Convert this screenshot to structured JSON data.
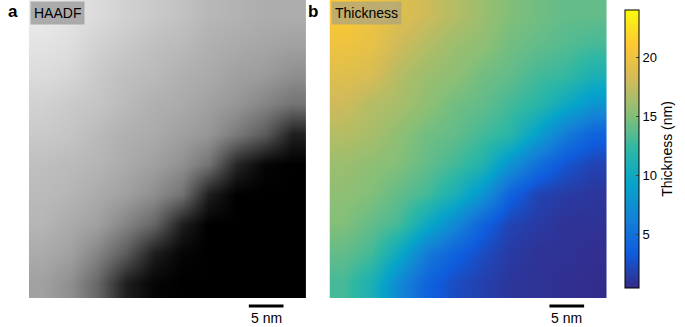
{
  "chart_data": [
    {
      "type": "heatmap",
      "panel": "a",
      "title": "HAADF",
      "xlim": [
        0,
        40
      ],
      "ylim": [
        0,
        40
      ],
      "tick_labels": false,
      "x": [
        2,
        6,
        10,
        14,
        18,
        22,
        26,
        30,
        34,
        38
      ],
      "y": [
        2,
        6,
        10,
        14,
        18,
        22,
        26,
        30,
        34,
        38
      ],
      "z": [
        [
          0.92,
          0.89,
          0.86,
          0.82,
          0.79,
          0.76,
          0.72,
          0.7,
          0.68,
          0.68
        ],
        [
          0.89,
          0.87,
          0.82,
          0.79,
          0.75,
          0.73,
          0.69,
          0.67,
          0.65,
          0.63
        ],
        [
          0.86,
          0.84,
          0.79,
          0.75,
          0.73,
          0.69,
          0.67,
          0.63,
          0.61,
          0.56
        ],
        [
          0.82,
          0.79,
          0.77,
          0.73,
          0.69,
          0.67,
          0.63,
          0.59,
          0.52,
          0.45
        ],
        [
          0.79,
          0.77,
          0.73,
          0.69,
          0.67,
          0.63,
          0.59,
          0.48,
          0.36,
          0.12
        ],
        [
          0.75,
          0.73,
          0.71,
          0.67,
          0.63,
          0.57,
          0.45,
          0.15,
          0.02,
          0
        ],
        [
          0.73,
          0.71,
          0.67,
          0.63,
          0.56,
          0.45,
          0.12,
          0,
          0,
          0
        ],
        [
          0.71,
          0.67,
          0.63,
          0.52,
          0.4,
          0.12,
          0,
          0,
          0,
          0
        ],
        [
          0.67,
          0.63,
          0.52,
          0.36,
          0.12,
          0.02,
          0,
          0,
          0,
          0
        ],
        [
          0.63,
          0.56,
          0.4,
          0.12,
          0.02,
          0,
          0,
          0,
          0,
          0
        ]
      ],
      "zlim": [
        0,
        1
      ],
      "scale_bar": {
        "length": 5,
        "label": "5 nm"
      }
    },
    {
      "type": "heatmap",
      "panel": "b",
      "title": "Thickness",
      "xlim": [
        0,
        40
      ],
      "ylim": [
        0,
        40
      ],
      "tick_labels": false,
      "x": [
        2,
        6,
        10,
        14,
        18,
        22,
        26,
        30,
        34,
        38
      ],
      "y": [
        2,
        6,
        10,
        14,
        18,
        22,
        26,
        30,
        34,
        38
      ],
      "z": [
        [
          21,
          20,
          19,
          18,
          17,
          16,
          15,
          14.5,
          14,
          14
        ],
        [
          20,
          19.5,
          18,
          17,
          16,
          15.5,
          14.5,
          14,
          13.5,
          13
        ],
        [
          19,
          18.5,
          17,
          16,
          15.5,
          14.5,
          14,
          13,
          12.5,
          11
        ],
        [
          18,
          17,
          16.5,
          15.5,
          14.5,
          14,
          13,
          12,
          10,
          8
        ],
        [
          17,
          16.5,
          15.5,
          14.5,
          14,
          13,
          12,
          9,
          6,
          4
        ],
        [
          16,
          15.5,
          15,
          14,
          13,
          11.5,
          8,
          5,
          3,
          2
        ],
        [
          15.5,
          15,
          14,
          13,
          11,
          8,
          4,
          2,
          1.5,
          1.2
        ],
        [
          15,
          14,
          13,
          10,
          7,
          4,
          2,
          1.5,
          1,
          1
        ],
        [
          14,
          13,
          10,
          6,
          4,
          2.5,
          1.5,
          1,
          1,
          0.8
        ],
        [
          13,
          11,
          7,
          4,
          2.5,
          1.8,
          1.2,
          1,
          0.8,
          0.7
        ]
      ],
      "colorbar": {
        "title": "Thickness (nm)",
        "range": [
          0.5,
          24
        ],
        "ticks": [
          5,
          10,
          15,
          20
        ]
      },
      "scale_bar": {
        "length": 5,
        "label": "5 nm"
      }
    }
  ]
}
